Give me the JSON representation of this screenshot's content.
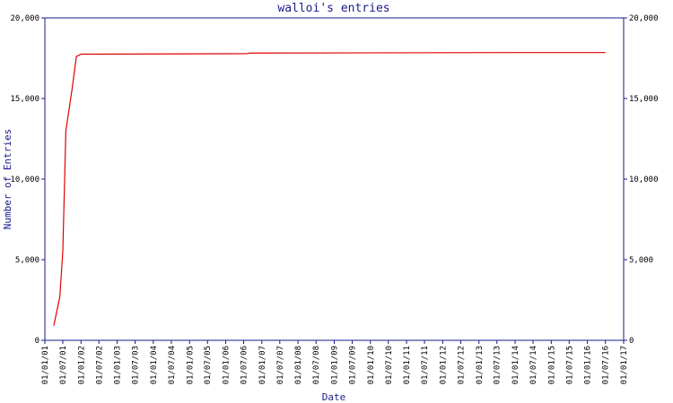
{
  "chart_data": {
    "type": "line",
    "title": "walloi's entries",
    "xlabel": "Date",
    "ylabel": "Number of Entries",
    "x": [
      "01/04/01",
      "01/06/01",
      "01/07/01",
      "01/08/01",
      "01/10/01",
      "15/11/01",
      "01/01/02",
      "01/08/06",
      "01/09/06",
      "01/12/13",
      "01/07/16"
    ],
    "series": [
      {
        "name": "walloi",
        "color": "#e00000",
        "values": [
          900,
          2700,
          5500,
          13000,
          15500,
          17600,
          17750,
          17780,
          17820,
          17850,
          17850
        ]
      }
    ],
    "xlim": [
      "01/01/01",
      "01/01/17"
    ],
    "xticks": [
      "01/01/01",
      "01/07/01",
      "01/01/02",
      "01/07/02",
      "01/01/03",
      "01/07/03",
      "01/01/04",
      "01/07/04",
      "01/01/05",
      "01/07/05",
      "01/01/06",
      "01/07/06",
      "01/01/07",
      "01/07/07",
      "01/01/08",
      "01/07/08",
      "01/01/09",
      "01/07/09",
      "01/01/10",
      "01/07/10",
      "01/01/11",
      "01/07/11",
      "01/01/12",
      "01/07/12",
      "01/01/13",
      "01/07/13",
      "01/01/14",
      "01/07/14",
      "01/01/15",
      "01/07/15",
      "01/01/16",
      "01/07/16",
      "01/01/17"
    ],
    "ylim": [
      0,
      20000
    ],
    "yticks": [
      0,
      {
        "value": 5000,
        "label": "5,000"
      },
      {
        "value": 10000,
        "label": "10,000"
      },
      {
        "value": 15000,
        "label": "15,000"
      },
      {
        "value": 20000,
        "label": "20,000"
      }
    ],
    "axis_color": "#1a1a8c"
  }
}
